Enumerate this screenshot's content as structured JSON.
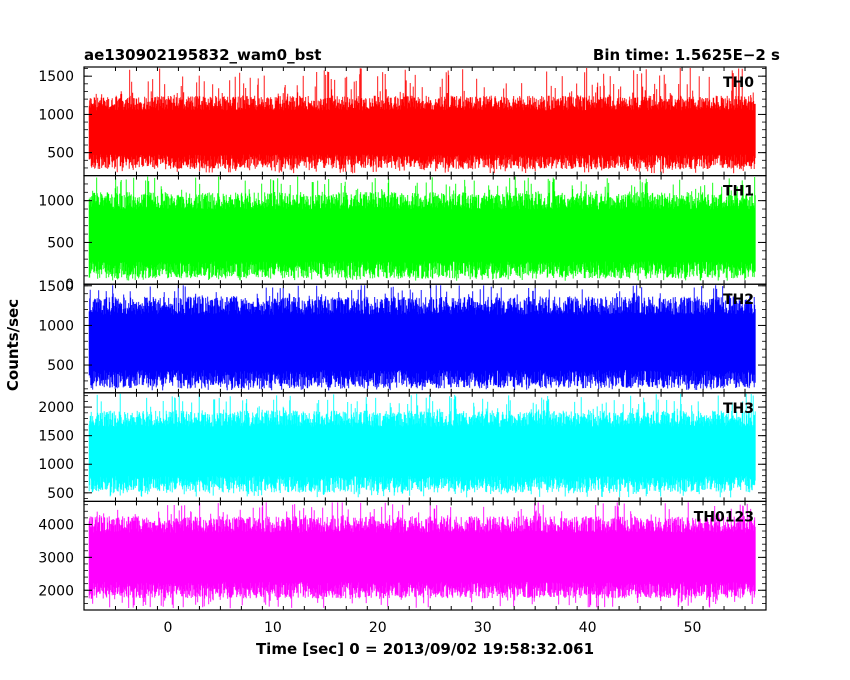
{
  "chart_data": {
    "type": "line",
    "title": "ae130902195832_wam0_bst",
    "subtitle": "Bin time: 1.5625E−2 s",
    "xlabel": "Time [sec] 0 = 2013/09/02 19:58:32.061",
    "ylabel": "Counts/sec",
    "xlim": [
      -8.0,
      57.0
    ],
    "x_ticks": [
      0,
      10,
      20,
      30,
      40,
      50
    ],
    "x_range": [
      -7.5,
      56.0
    ],
    "grid": false,
    "panels": [
      {
        "name": "TH0",
        "color": "#ff0000",
        "ylim": [
          200,
          1620
        ],
        "y_ticks": [
          500,
          1000,
          1500
        ],
        "approx_band": [
          380,
          1150
        ],
        "approx_min": 230,
        "approx_max": 1620
      },
      {
        "name": "TH1",
        "color": "#00ff00",
        "ylim": [
          0,
          1300
        ],
        "y_ticks": [
          0,
          500,
          1000
        ],
        "approx_band": [
          170,
          1000
        ],
        "approx_min": 40,
        "approx_max": 1300
      },
      {
        "name": "TH2",
        "color": "#0000ff",
        "ylim": [
          150,
          1520
        ],
        "y_ticks": [
          500,
          1000,
          1500
        ],
        "approx_band": [
          320,
          1250
        ],
        "approx_min": 180,
        "approx_max": 1520
      },
      {
        "name": "TH3",
        "color": "#00ffff",
        "ylim": [
          350,
          2250
        ],
        "y_ticks": [
          500,
          1000,
          1500,
          2000
        ],
        "approx_band": [
          650,
          1800
        ],
        "approx_min": 420,
        "approx_max": 2250
      },
      {
        "name": "TH0123",
        "color": "#ff00ff",
        "ylim": [
          1400,
          4700
        ],
        "y_ticks": [
          2000,
          3000,
          4000
        ],
        "approx_band": [
          2000,
          4000
        ],
        "approx_min": 1450,
        "approx_max": 4700
      }
    ]
  }
}
